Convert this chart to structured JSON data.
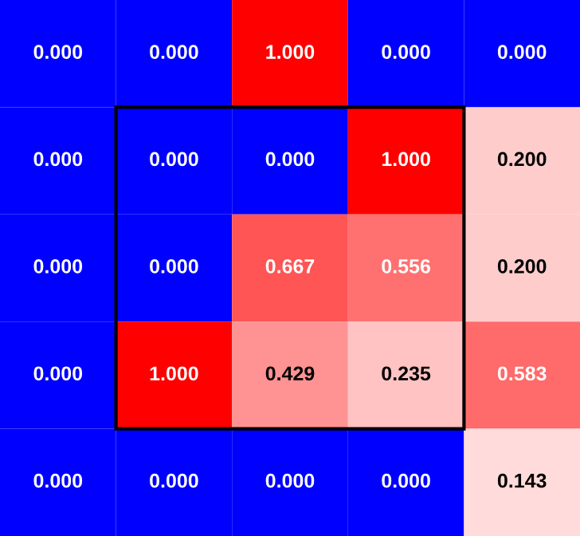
{
  "chart_data": {
    "type": "heatmap",
    "categories": [
      null,
      null,
      null,
      null,
      null
    ],
    "y_categories": [
      null,
      null,
      null,
      null,
      null
    ],
    "cells": [
      [
        0,
        0,
        1,
        0,
        0
      ],
      [
        0,
        0,
        0,
        1,
        0.2
      ],
      [
        0,
        0,
        0.667,
        0.556,
        0.2
      ],
      [
        0,
        1,
        0.429,
        0.235,
        0.583
      ],
      [
        0,
        0,
        0,
        0,
        0.143
      ]
    ],
    "cell_labels": [
      [
        "0.000",
        "0.000",
        "1.000",
        "0.000",
        "0.000"
      ],
      [
        "0.000",
        "0.000",
        "0.000",
        "1.000",
        "0.200"
      ],
      [
        "0.000",
        "0.000",
        "0.667",
        "0.556",
        "0.200"
      ],
      [
        "0.000",
        "1.000",
        "0.429",
        "0.235",
        "0.583"
      ],
      [
        "0.000",
        "0.000",
        "0.000",
        "0.000",
        "0.143"
      ]
    ]
  }
}
